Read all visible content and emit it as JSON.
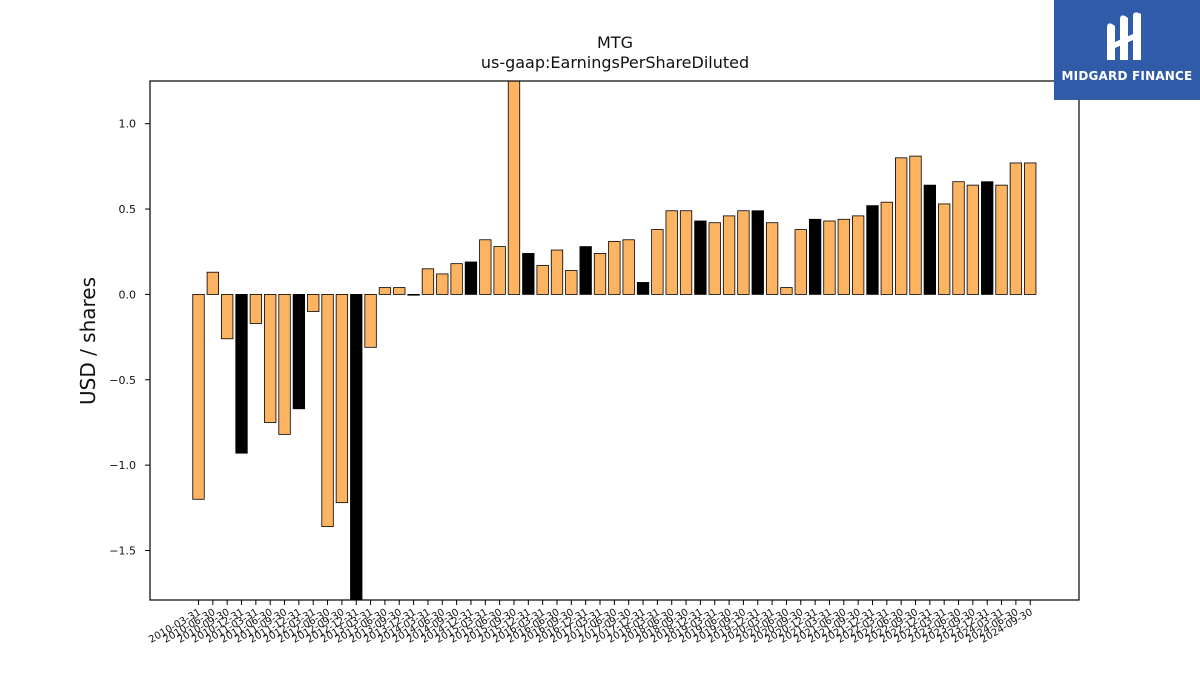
{
  "chart_data": {
    "type": "bar",
    "title": "MTG",
    "subtitle": "us-gaap:EarningsPerShareDiluted",
    "ylabel": "USD / shares",
    "xlabel": "",
    "ylim": [
      -1.79,
      1.25
    ],
    "yticks": [
      -1.5,
      -1.0,
      -0.5,
      0.0,
      0.5,
      1.0
    ],
    "ytick_labels": [
      "−1.5",
      "−1.0",
      "−0.5",
      "0.0",
      "0.5",
      "1.0"
    ],
    "grid": false,
    "colors": {
      "orange": "#fdb462",
      "black": "#000000",
      "edge": "#000000"
    },
    "categories": [
      "2010-03-31",
      "2010-06-30",
      "2010-09-30",
      "2010-12-31",
      "2011-03-31",
      "2011-06-30",
      "2011-09-30",
      "2011-12-31",
      "2012-03-31",
      "2012-06-30",
      "2012-09-30",
      "2012-12-31",
      "2013-03-31",
      "2013-06-30",
      "2013-09-30",
      "2013-12-31",
      "2014-03-31",
      "2014-06-30",
      "2014-09-30",
      "2014-12-31",
      "2015-03-31",
      "2015-06-30",
      "2015-09-30",
      "2015-12-31",
      "2016-03-31",
      "2016-06-30",
      "2016-09-30",
      "2016-12-31",
      "2017-03-31",
      "2017-06-30",
      "2017-09-30",
      "2017-12-31",
      "2018-03-31",
      "2018-06-30",
      "2018-09-30",
      "2018-12-31",
      "2019-03-31",
      "2019-06-30",
      "2019-09-30",
      "2019-12-31",
      "2020-03-31",
      "2020-06-30",
      "2020-09-30",
      "2020-12-31",
      "2021-03-31",
      "2021-06-30",
      "2021-09-30",
      "2021-12-31",
      "2022-03-31",
      "2022-06-30",
      "2022-09-30",
      "2022-12-31",
      "2023-03-31",
      "2023-06-30",
      "2023-09-30",
      "2023-12-31",
      "2024-03-31",
      "2024-06-30",
      "2024-09-30"
    ],
    "values": [
      -1.2,
      0.13,
      -0.26,
      -0.93,
      -0.17,
      -0.75,
      -0.82,
      -0.67,
      -0.1,
      -1.36,
      -1.22,
      -1.85,
      -0.31,
      0.04,
      0.04,
      0.0,
      0.15,
      0.12,
      0.18,
      0.19,
      0.32,
      0.28,
      1.25,
      0.24,
      0.17,
      0.26,
      0.14,
      0.28,
      0.24,
      0.31,
      0.32,
      0.07,
      0.38,
      0.49,
      0.49,
      0.43,
      0.42,
      0.46,
      0.49,
      0.49,
      0.42,
      0.04,
      0.38,
      0.44,
      0.43,
      0.44,
      0.46,
      0.52,
      0.54,
      0.8,
      0.81,
      0.64,
      0.53,
      0.66,
      0.64,
      0.66,
      0.64,
      0.77,
      0.77
    ],
    "bar_colors": [
      "orange",
      "orange",
      "orange",
      "black",
      "orange",
      "orange",
      "orange",
      "black",
      "orange",
      "orange",
      "orange",
      "black",
      "orange",
      "orange",
      "orange",
      "orange",
      "orange",
      "orange",
      "orange",
      "black",
      "orange",
      "orange",
      "orange",
      "black",
      "orange",
      "orange",
      "orange",
      "black",
      "orange",
      "orange",
      "orange",
      "black",
      "orange",
      "orange",
      "orange",
      "black",
      "orange",
      "orange",
      "orange",
      "black",
      "orange",
      "orange",
      "orange",
      "black",
      "orange",
      "orange",
      "orange",
      "black",
      "orange",
      "orange",
      "orange",
      "black",
      "orange",
      "orange",
      "orange",
      "black",
      "orange",
      "orange",
      "orange"
    ]
  },
  "logo": {
    "text": "MIDGARD FINANCE",
    "icon": "midgard-logo-icon",
    "background": "#2f5ba8"
  }
}
